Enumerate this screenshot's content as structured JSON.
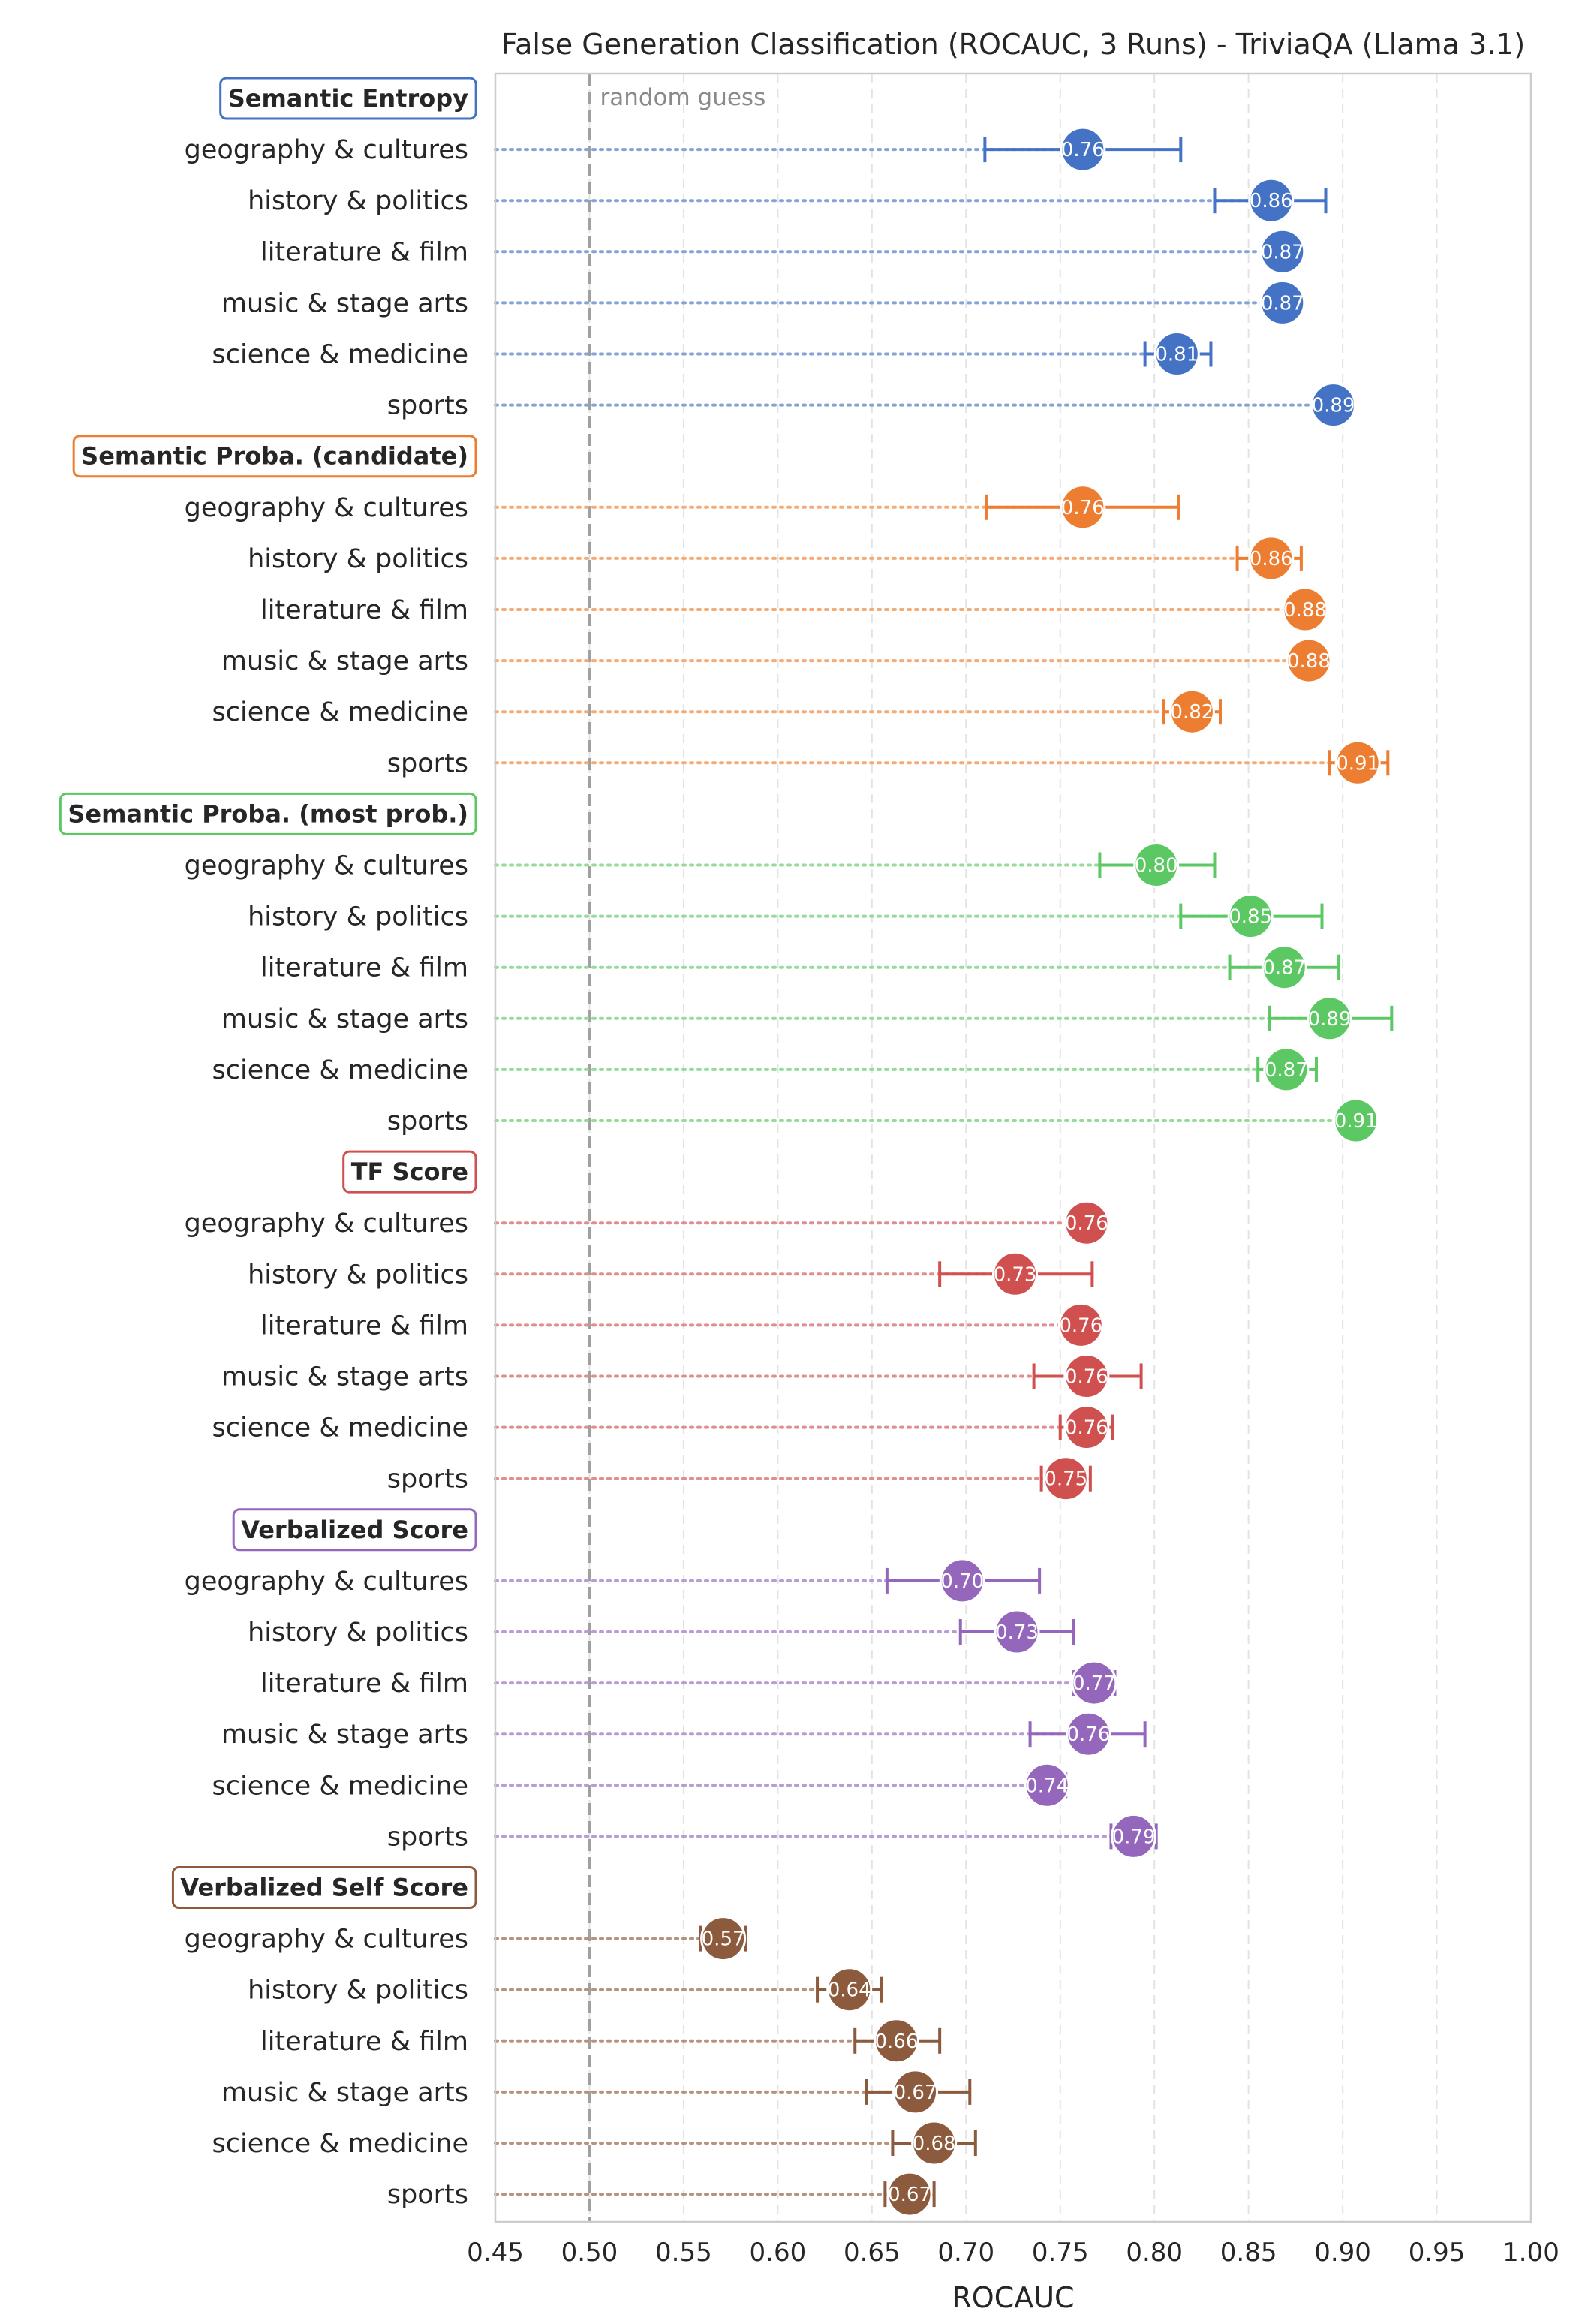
{
  "chart_data": {
    "type": "scatter",
    "title": "False Generation Classification (ROCAUC, 3 Runs) - TriviaQA (Llama 3.1)",
    "xlabel": "ROCAUC",
    "xlim": [
      0.45,
      1.0
    ],
    "xticks": [
      "0.45",
      "0.50",
      "0.55",
      "0.60",
      "0.65",
      "0.70",
      "0.75",
      "0.80",
      "0.85",
      "0.90",
      "0.95",
      "1.00"
    ],
    "grid": "vertical dashed",
    "reference_line": {
      "x": 0.5,
      "label": "random guess"
    },
    "categories": [
      "geography & cultures",
      "history & politics",
      "literature & film",
      "music & stage arts",
      "science & medicine",
      "sports"
    ],
    "groups": [
      {
        "name": "Semantic Entropy",
        "color": "#4472c4",
        "values": [
          0.762,
          0.862,
          0.868,
          0.868,
          0.812,
          0.895
        ],
        "labels": [
          "0.76",
          "0.86",
          "0.87",
          "0.87",
          "0.81",
          "0.89"
        ],
        "err_low": [
          0.71,
          0.832,
          0.868,
          0.868,
          0.795,
          0.895
        ],
        "err_high": [
          0.814,
          0.891,
          0.868,
          0.868,
          0.83,
          0.895
        ]
      },
      {
        "name": "Semantic Proba. (candidate)",
        "color": "#ed7d31",
        "values": [
          0.762,
          0.862,
          0.88,
          0.882,
          0.82,
          0.908
        ],
        "labels": [
          "0.76",
          "0.86",
          "0.88",
          "0.88",
          "0.82",
          "0.91"
        ],
        "err_low": [
          0.711,
          0.844,
          0.88,
          0.882,
          0.805,
          0.893
        ],
        "err_high": [
          0.813,
          0.878,
          0.88,
          0.882,
          0.835,
          0.924
        ]
      },
      {
        "name": "Semantic Proba. (most prob.)",
        "color": "#5cc863",
        "values": [
          0.801,
          0.851,
          0.869,
          0.893,
          0.87,
          0.907
        ],
        "labels": [
          "0.80",
          "0.85",
          "0.87",
          "0.89",
          "0.87",
          "0.91"
        ],
        "err_low": [
          0.771,
          0.814,
          0.84,
          0.861,
          0.855,
          0.907
        ],
        "err_high": [
          0.832,
          0.889,
          0.898,
          0.926,
          0.886,
          0.907
        ]
      },
      {
        "name": "TF Score",
        "color": "#d05050",
        "values": [
          0.764,
          0.726,
          0.761,
          0.764,
          0.764,
          0.753
        ],
        "labels": [
          "0.76",
          "0.73",
          "0.76",
          "0.76",
          "0.76",
          "0.75"
        ],
        "err_low": [
          0.764,
          0.686,
          0.761,
          0.736,
          0.75,
          0.74
        ],
        "err_high": [
          0.764,
          0.767,
          0.761,
          0.793,
          0.778,
          0.766
        ]
      },
      {
        "name": "Verbalized Score",
        "color": "#9467bd",
        "values": [
          0.698,
          0.727,
          0.768,
          0.765,
          0.743,
          0.789
        ],
        "labels": [
          "0.70",
          "0.73",
          "0.77",
          "0.76",
          "0.74",
          "0.79"
        ],
        "err_low": [
          0.658,
          0.697,
          0.757,
          0.734,
          0.733,
          0.777
        ],
        "err_high": [
          0.739,
          0.757,
          0.779,
          0.795,
          0.753,
          0.801
        ]
      },
      {
        "name": "Verbalized Self Score",
        "color": "#8c5a3c",
        "values": [
          0.571,
          0.638,
          0.663,
          0.673,
          0.683,
          0.67
        ],
        "labels": [
          "0.57",
          "0.64",
          "0.66",
          "0.67",
          "0.68",
          "0.67"
        ],
        "err_low": [
          0.559,
          0.621,
          0.641,
          0.647,
          0.661,
          0.657
        ],
        "err_high": [
          0.583,
          0.655,
          0.686,
          0.702,
          0.705,
          0.683
        ]
      }
    ]
  }
}
